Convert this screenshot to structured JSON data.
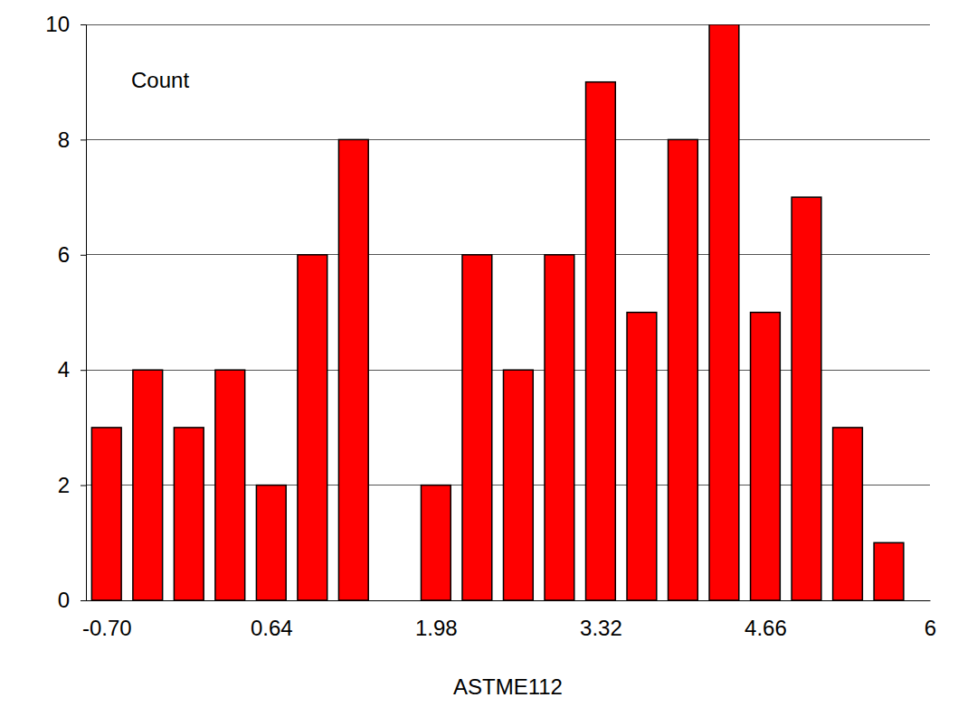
{
  "chart_data": {
    "type": "histogram",
    "xlabel": "ASTME112",
    "ylabel": "Count",
    "bins": [
      -0.8675,
      -0.5325,
      -0.1975,
      0.1375,
      0.4725,
      0.8075,
      1.1425,
      1.4775,
      1.8125,
      2.1475,
      2.4825,
      2.8175,
      3.1525,
      3.4875,
      3.8225,
      4.1575,
      4.4925,
      4.8275,
      5.1625,
      5.4975,
      5.8325
    ],
    "values": [
      3,
      4,
      3,
      4,
      2,
      6,
      8,
      0,
      2,
      6,
      4,
      6,
      9,
      5,
      8,
      10,
      5,
      7,
      3,
      1
    ],
    "color": "#ff0000",
    "xlim": [
      -0.8675,
      6
    ],
    "ylim": [
      0,
      10
    ],
    "xticks": [
      {
        "value": -0.7,
        "label": "-0.70"
      },
      0.64,
      1.98,
      3.32,
      4.66,
      6
    ],
    "yticks": [
      0,
      2,
      4,
      6,
      8,
      10
    ],
    "grid": true
  }
}
